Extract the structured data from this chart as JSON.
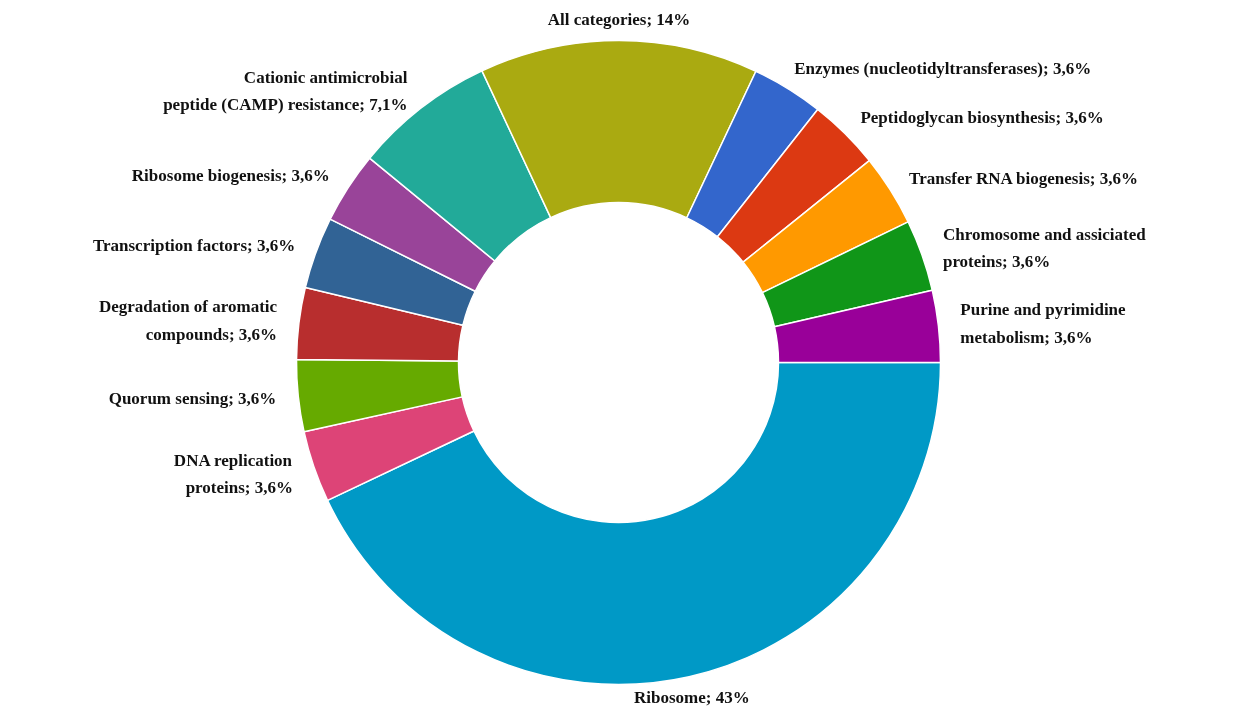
{
  "chart_data": {
    "type": "donut",
    "categories": [
      "Ribosome",
      "DNA replication\nproteins",
      "Quorum sensing",
      "Degradation of aromatic\ncompounds",
      "Transcription factors",
      "Ribosome biogenesis",
      "Cationic antimicrobial\npeptide (CAMP) resistance",
      "All categories",
      "Enzymes (nucleotidyltransferases)",
      "Peptidoglycan biosynthesis",
      "Transfer RNA biogenesis",
      "Chromosome and assiciated\nproteins",
      "Purine and pyrimidine\nmetabolism"
    ],
    "values": [
      43,
      3.6,
      3.6,
      3.6,
      3.6,
      3.6,
      7.1,
      14,
      3.6,
      3.6,
      3.6,
      3.6,
      3.6
    ],
    "value_labels": [
      "43%",
      "3,6%",
      "3,6%",
      "3,6%",
      "3,6%",
      "3,6%",
      "7,1%",
      "14%",
      "3,6%",
      "3,6%",
      "3,6%",
      "3,6%",
      "3,6%"
    ],
    "colors": [
      "#0099c6",
      "#dd4477",
      "#66aa00",
      "#b82e2e",
      "#316395",
      "#994499",
      "#22aa99",
      "#aaaa11",
      "#3366cc",
      "#dc3912",
      "#ff9900",
      "#109618",
      "#990099"
    ]
  }
}
